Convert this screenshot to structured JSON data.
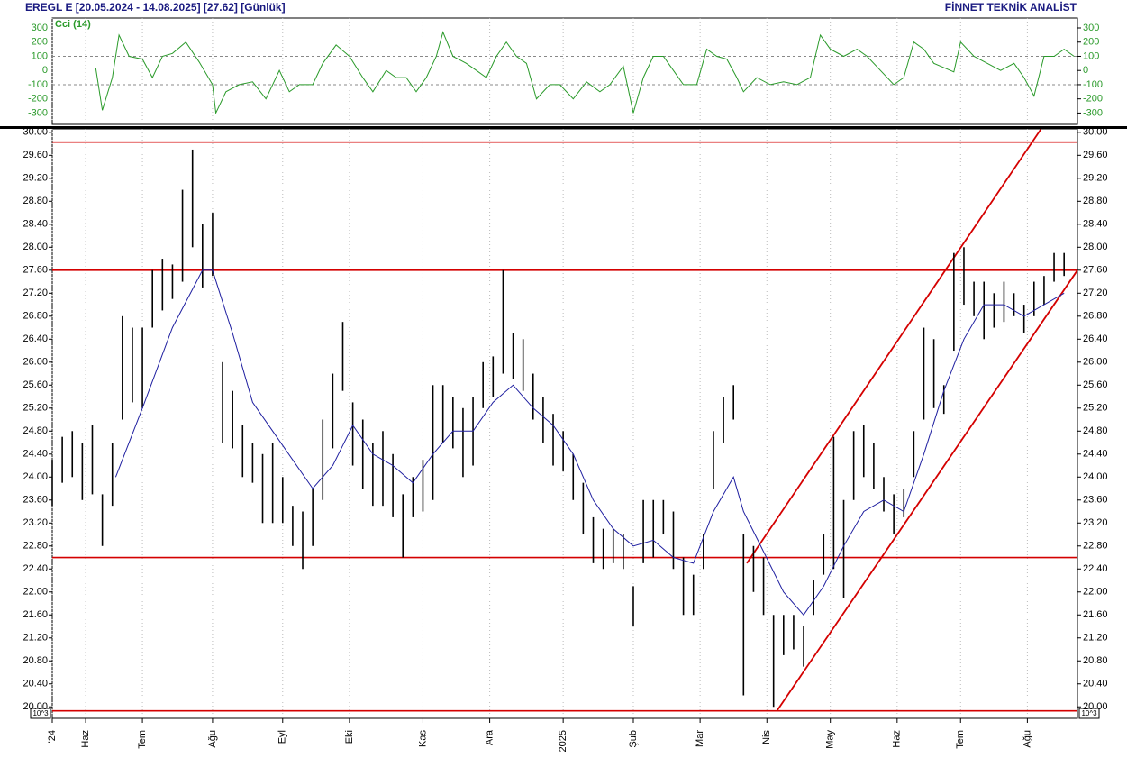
{
  "chart_data": {
    "type": "ohlc",
    "title": "EREGL E [20.05.2024 - 14.08.2025] [27.62] [Günlük]",
    "publisher": "FİNNET TEKNİK ANALİST",
    "scale_label": "10^3",
    "color": "#000000",
    "xlim": [
      0,
      307
    ],
    "xticks": [
      {
        "value": 0,
        "label": "'24"
      },
      {
        "value": 10,
        "label": "Haz"
      },
      {
        "value": 27,
        "label": "Tem"
      },
      {
        "value": 48,
        "label": "Ağu"
      },
      {
        "value": 69,
        "label": "Eyl"
      },
      {
        "value": 89,
        "label": "Eki"
      },
      {
        "value": 111,
        "label": "Kas"
      },
      {
        "value": 131,
        "label": "Ara"
      },
      {
        "value": 153,
        "label": "2025"
      },
      {
        "value": 174,
        "label": "Şub"
      },
      {
        "value": 194,
        "label": "Mar"
      },
      {
        "value": 214,
        "label": "Nis"
      },
      {
        "value": 233,
        "label": "May"
      },
      {
        "value": 253,
        "label": "Haz"
      },
      {
        "value": 272,
        "label": "Tem"
      },
      {
        "value": 292,
        "label": "Ağu"
      }
    ],
    "ylim": [
      19.8,
      30.06
    ],
    "yticks": [
      {
        "value": 20,
        "label": "20.00"
      },
      {
        "value": 20.4,
        "label": "20.40"
      },
      {
        "value": 20.8,
        "label": "20.80"
      },
      {
        "value": 21.2,
        "label": "21.20"
      },
      {
        "value": 21.6,
        "label": "21.60"
      },
      {
        "value": 22,
        "label": "22.00"
      },
      {
        "value": 22.4,
        "label": "22.40"
      },
      {
        "value": 22.8,
        "label": "22.80"
      },
      {
        "value": 23.2,
        "label": "23.20"
      },
      {
        "value": 23.6,
        "label": "23.60"
      },
      {
        "value": 24,
        "label": "24.00"
      },
      {
        "value": 24.4,
        "label": "24.40"
      },
      {
        "value": 24.8,
        "label": "24.80"
      },
      {
        "value": 25.2,
        "label": "25.20"
      },
      {
        "value": 25.6,
        "label": "25.60"
      },
      {
        "value": 26,
        "label": "26.00"
      },
      {
        "value": 26.4,
        "label": "26.40"
      },
      {
        "value": 26.8,
        "label": "26.80"
      },
      {
        "value": 27.2,
        "label": "27.20"
      },
      {
        "value": 27.6,
        "label": "27.60"
      },
      {
        "value": 28,
        "label": "28.00"
      },
      {
        "value": 28.4,
        "label": "28.40"
      },
      {
        "value": 28.8,
        "label": "28.80"
      },
      {
        "value": 29.2,
        "label": "29.20"
      },
      {
        "value": 29.6,
        "label": "29.60"
      },
      {
        "value": 30,
        "label": "30.00"
      }
    ],
    "x": [
      0,
      3,
      6,
      9,
      12,
      15,
      18,
      21,
      24,
      27,
      30,
      33,
      36,
      39,
      42,
      45,
      48,
      51,
      54,
      57,
      60,
      63,
      66,
      69,
      72,
      75,
      78,
      81,
      84,
      87,
      90,
      93,
      96,
      99,
      102,
      105,
      108,
      111,
      114,
      117,
      120,
      123,
      126,
      129,
      132,
      135,
      138,
      141,
      144,
      147,
      150,
      153,
      156,
      159,
      162,
      165,
      168,
      171,
      174,
      177,
      180,
      183,
      186,
      189,
      192,
      195,
      198,
      201,
      204,
      207,
      210,
      213,
      216,
      219,
      222,
      225,
      228,
      231,
      234,
      237,
      240,
      243,
      246,
      249,
      252,
      255,
      258,
      261,
      264,
      267,
      270,
      273,
      276,
      279,
      282,
      285,
      288,
      291,
      294,
      297,
      300,
      303
    ],
    "low": [
      23.5,
      23.9,
      24.0,
      23.6,
      23.7,
      22.8,
      23.5,
      25.0,
      25.3,
      25.2,
      26.6,
      26.9,
      27.1,
      27.4,
      28.0,
      27.3,
      27.5,
      24.6,
      24.5,
      24.0,
      23.9,
      23.2,
      23.2,
      23.2,
      22.8,
      22.4,
      22.8,
      23.6,
      24.5,
      25.5,
      24.2,
      23.8,
      23.5,
      23.5,
      23.3,
      22.6,
      23.3,
      23.4,
      23.6,
      24.6,
      24.5,
      24.0,
      24.2,
      25.2,
      25.4,
      25.8,
      25.7,
      25.5,
      25.0,
      24.6,
      24.2,
      24.1,
      23.6,
      23.0,
      22.5,
      22.4,
      22.5,
      22.4,
      21.4,
      22.5,
      22.6,
      23.0,
      22.4,
      21.6,
      21.6,
      22.4,
      23.8,
      24.6,
      25.0,
      20.2,
      22.0,
      21.6,
      20.0,
      20.9,
      21.0,
      20.7,
      21.6,
      22.3,
      22.4,
      21.9,
      23.6,
      24.0,
      23.8,
      23.4,
      23.0,
      23.3,
      24.0,
      25.0,
      25.2,
      25.1,
      26.2,
      27.0,
      26.8,
      26.4,
      26.6,
      26.7,
      26.8,
      26.5,
      26.8,
      27.0,
      27.4,
      27.5
    ],
    "high": [
      24.3,
      24.7,
      24.8,
      24.6,
      24.9,
      23.7,
      24.6,
      26.8,
      26.6,
      26.6,
      27.6,
      27.8,
      27.7,
      29.0,
      29.7,
      28.4,
      28.6,
      26.0,
      25.5,
      24.9,
      24.6,
      24.4,
      24.6,
      24.0,
      23.5,
      23.4,
      23.8,
      25.0,
      25.8,
      26.7,
      25.3,
      25.0,
      24.6,
      24.8,
      24.4,
      23.7,
      24.0,
      24.3,
      25.6,
      25.6,
      25.4,
      25.2,
      25.4,
      26.0,
      26.1,
      27.6,
      26.5,
      26.4,
      25.8,
      25.4,
      25.1,
      24.8,
      24.4,
      23.9,
      23.3,
      23.1,
      23.1,
      23.0,
      22.1,
      23.6,
      23.6,
      23.6,
      23.4,
      22.6,
      22.3,
      23.0,
      24.8,
      25.4,
      25.6,
      23.0,
      22.8,
      22.6,
      21.6,
      21.6,
      21.6,
      21.4,
      22.2,
      23.0,
      24.7,
      23.6,
      24.8,
      24.9,
      24.6,
      24.0,
      23.7,
      23.8,
      24.8,
      26.6,
      26.4,
      25.6,
      27.9,
      28.0,
      27.4,
      27.4,
      27.2,
      27.4,
      27.2,
      27.0,
      27.4,
      27.5,
      27.9,
      27.9
    ],
    "moving_average": {
      "color": "#1f1fa0",
      "x": [
        19,
        27,
        36,
        45,
        48,
        54,
        60,
        66,
        72,
        78,
        84,
        90,
        96,
        102,
        108,
        114,
        120,
        126,
        132,
        138,
        144,
        150,
        156,
        162,
        168,
        174,
        180,
        186,
        192,
        198,
        204,
        207,
        213,
        219,
        225,
        231,
        237,
        243,
        249,
        255,
        261,
        267,
        273,
        279,
        285,
        291,
        297,
        303
      ],
      "values": [
        24.0,
        25.2,
        26.6,
        27.6,
        27.6,
        26.5,
        25.3,
        24.8,
        24.3,
        23.8,
        24.2,
        24.9,
        24.4,
        24.2,
        23.9,
        24.4,
        24.8,
        24.8,
        25.3,
        25.6,
        25.2,
        24.9,
        24.4,
        23.6,
        23.1,
        22.8,
        22.9,
        22.6,
        22.5,
        23.4,
        24.0,
        23.4,
        22.7,
        22.0,
        21.6,
        22.1,
        22.8,
        23.4,
        23.6,
        23.4,
        24.4,
        25.5,
        26.4,
        27.0,
        27.0,
        26.8,
        27.0,
        27.2
      ]
    },
    "levels": {
      "color": "#d40000",
      "values": [
        29.83,
        27.6,
        22.6,
        19.93
      ]
    },
    "channel": [
      {
        "x": [
          208,
          296
        ],
        "values": [
          22.5,
          30.05
        ]
      },
      {
        "x": [
          217,
          307
        ],
        "values": [
          19.93,
          27.6
        ]
      }
    ],
    "indicator": {
      "type": "line",
      "name": "Cci (14)",
      "color": "#2a9a2a",
      "ylim": [
        -380,
        370
      ],
      "yticks": [
        300,
        200,
        100,
        0,
        -100,
        -200,
        -300
      ],
      "reference_lines": [
        100,
        -100
      ],
      "x": [
        13,
        15,
        18,
        20,
        23,
        27,
        30,
        33,
        36,
        40,
        44,
        48,
        49,
        52,
        56,
        60,
        64,
        68,
        71,
        74,
        78,
        81,
        85,
        89,
        93,
        96,
        100,
        103,
        106,
        109,
        112,
        115,
        117,
        120,
        124,
        127,
        130,
        133,
        136,
        139,
        142,
        145,
        149,
        152,
        156,
        160,
        164,
        167,
        171,
        174,
        177,
        180,
        183,
        186,
        189,
        193,
        196,
        199,
        202,
        205,
        207,
        211,
        215,
        219,
        223,
        227,
        230,
        233,
        237,
        241,
        244,
        248,
        252,
        255,
        258,
        261,
        264,
        267,
        270,
        272,
        276,
        280,
        284,
        288,
        291,
        294,
        297,
        300,
        303,
        306
      ],
      "values": [
        20,
        -280,
        -50,
        250,
        100,
        80,
        -50,
        100,
        120,
        200,
        60,
        -100,
        -300,
        -150,
        -100,
        -80,
        -200,
        0,
        -150,
        -100,
        -100,
        50,
        180,
        100,
        -50,
        -150,
        0,
        -50,
        -50,
        -150,
        -50,
        100,
        270,
        100,
        50,
        0,
        -50,
        100,
        200,
        100,
        50,
        -200,
        -100,
        -100,
        -200,
        -80,
        -150,
        -100,
        30,
        -300,
        -50,
        100,
        100,
        0,
        -100,
        -100,
        150,
        100,
        80,
        -50,
        -150,
        -50,
        -100,
        -80,
        -100,
        -50,
        250,
        150,
        100,
        150,
        100,
        0,
        -100,
        -50,
        200,
        150,
        50,
        20,
        -10,
        200,
        100,
        50,
        0,
        50,
        -50,
        -180,
        100,
        100,
        150,
        100
      ]
    }
  }
}
